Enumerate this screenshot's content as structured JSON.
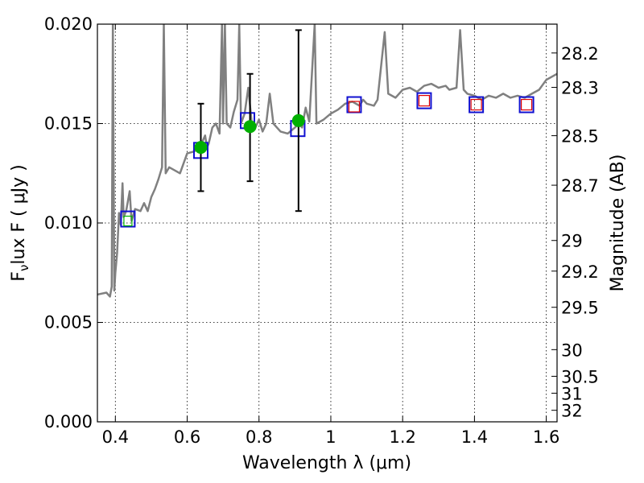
{
  "chart_data": {
    "type": "scatter",
    "xlabel": "Wavelength  λ (μm)",
    "ylabel": "Flux  F  ( μJy )",
    "ylabel_subscript": "ν",
    "y2label": "Magnitude (AB)",
    "xlim": [
      0.35,
      1.63
    ],
    "ylim": [
      0.0,
      0.02
    ],
    "grid": true,
    "x_ticks": [
      0.4,
      0.6,
      0.8,
      1.0,
      1.2,
      1.4,
      1.6
    ],
    "x_tick_labels": [
      "0.4",
      "0.6",
      "0.8",
      "1",
      "1.2",
      "1.4",
      "1.6"
    ],
    "y_ticks": [
      0.0,
      0.005,
      0.01,
      0.015,
      0.02
    ],
    "y_tick_labels": [
      "0.000",
      "0.005",
      "0.010",
      "0.015",
      "0.020"
    ],
    "y2_ticks": [
      {
        "flux": 0.01855,
        "label": "28.2"
      },
      {
        "flux": 0.01682,
        "label": "28.3"
      },
      {
        "flux": 0.01439,
        "label": "28.5"
      },
      {
        "flux": 0.0119,
        "label": "28.7"
      },
      {
        "flux": 0.00912,
        "label": "29"
      },
      {
        "flux": 0.00758,
        "label": "29.2"
      },
      {
        "flux": 0.00576,
        "label": "29.5"
      },
      {
        "flux": 0.00363,
        "label": "30"
      },
      {
        "flux": 0.00229,
        "label": "30.5"
      },
      {
        "flux": 0.00144,
        "label": "31"
      },
      {
        "flux": 0.00058,
        "label": "32"
      }
    ],
    "series": [
      {
        "kind": "line",
        "color": "#808080",
        "points": [
          [
            0.35,
            0.0064
          ],
          [
            0.375,
            0.0065
          ],
          [
            0.385,
            0.0063
          ],
          [
            0.39,
            0.0068
          ],
          [
            0.393,
            0.02
          ],
          [
            0.397,
            0.0066
          ],
          [
            0.4,
            0.0075
          ],
          [
            0.405,
            0.0085
          ],
          [
            0.41,
            0.0105
          ],
          [
            0.415,
            0.0099
          ],
          [
            0.42,
            0.012
          ],
          [
            0.423,
            0.0103
          ],
          [
            0.43,
            0.0106
          ],
          [
            0.44,
            0.0116
          ],
          [
            0.445,
            0.0101
          ],
          [
            0.455,
            0.0107
          ],
          [
            0.47,
            0.0106
          ],
          [
            0.48,
            0.011
          ],
          [
            0.49,
            0.0106
          ],
          [
            0.5,
            0.0113
          ],
          [
            0.51,
            0.0117
          ],
          [
            0.52,
            0.0122
          ],
          [
            0.53,
            0.0128
          ],
          [
            0.535,
            0.02
          ],
          [
            0.54,
            0.0125
          ],
          [
            0.55,
            0.0128
          ],
          [
            0.56,
            0.0127
          ],
          [
            0.58,
            0.0125
          ],
          [
            0.6,
            0.0135
          ],
          [
            0.62,
            0.0136
          ],
          [
            0.64,
            0.014
          ],
          [
            0.65,
            0.0144
          ],
          [
            0.655,
            0.0138
          ],
          [
            0.66,
            0.014
          ],
          [
            0.67,
            0.0148
          ],
          [
            0.68,
            0.015
          ],
          [
            0.69,
            0.0145
          ],
          [
            0.697,
            0.02
          ],
          [
            0.7,
            0.015
          ],
          [
            0.705,
            0.02
          ],
          [
            0.71,
            0.015
          ],
          [
            0.72,
            0.0148
          ],
          [
            0.73,
            0.0156
          ],
          [
            0.74,
            0.0162
          ],
          [
            0.745,
            0.02
          ],
          [
            0.75,
            0.015
          ],
          [
            0.76,
            0.0155
          ],
          [
            0.77,
            0.0168
          ],
          [
            0.78,
            0.015
          ],
          [
            0.79,
            0.0148
          ],
          [
            0.8,
            0.0152
          ],
          [
            0.81,
            0.0146
          ],
          [
            0.82,
            0.015
          ],
          [
            0.83,
            0.0165
          ],
          [
            0.84,
            0.015
          ],
          [
            0.86,
            0.0146
          ],
          [
            0.88,
            0.0145
          ],
          [
            0.9,
            0.0148
          ],
          [
            0.91,
            0.015
          ],
          [
            0.92,
            0.0148
          ],
          [
            0.93,
            0.0158
          ],
          [
            0.94,
            0.0151
          ],
          [
            0.955,
            0.02
          ],
          [
            0.96,
            0.015
          ],
          [
            0.98,
            0.0152
          ],
          [
            1.0,
            0.0155
          ],
          [
            1.02,
            0.0157
          ],
          [
            1.04,
            0.016
          ],
          [
            1.06,
            0.0161
          ],
          [
            1.08,
            0.0159
          ],
          [
            1.09,
            0.0162
          ],
          [
            1.1,
            0.016
          ],
          [
            1.12,
            0.0159
          ],
          [
            1.13,
            0.0162
          ],
          [
            1.15,
            0.0196
          ],
          [
            1.16,
            0.0165
          ],
          [
            1.18,
            0.0163
          ],
          [
            1.2,
            0.0167
          ],
          [
            1.22,
            0.0168
          ],
          [
            1.24,
            0.0166
          ],
          [
            1.26,
            0.0169
          ],
          [
            1.28,
            0.017
          ],
          [
            1.3,
            0.0168
          ],
          [
            1.32,
            0.0169
          ],
          [
            1.33,
            0.0167
          ],
          [
            1.35,
            0.0168
          ],
          [
            1.36,
            0.0197
          ],
          [
            1.37,
            0.0167
          ],
          [
            1.38,
            0.0165
          ],
          [
            1.4,
            0.0164
          ],
          [
            1.42,
            0.0162
          ],
          [
            1.44,
            0.0164
          ],
          [
            1.46,
            0.0163
          ],
          [
            1.48,
            0.0165
          ],
          [
            1.5,
            0.0163
          ],
          [
            1.52,
            0.0164
          ],
          [
            1.54,
            0.0163
          ],
          [
            1.56,
            0.0165
          ],
          [
            1.58,
            0.0167
          ],
          [
            1.6,
            0.0172
          ],
          [
            1.63,
            0.0175
          ]
        ]
      },
      {
        "kind": "model_squares",
        "edge_color": "#1010d0",
        "points": [
          [
            0.435,
            0.0102
          ],
          [
            0.638,
            0.01365
          ],
          [
            0.768,
            0.01515
          ],
          [
            0.908,
            0.01475
          ],
          [
            1.065,
            0.01595
          ],
          [
            1.26,
            0.01615
          ],
          [
            1.405,
            0.01595
          ],
          [
            1.545,
            0.01595
          ]
        ]
      },
      {
        "kind": "observed_squares",
        "edge_color": "#e00000",
        "points": [
          [
            1.065,
            0.01585
          ],
          [
            1.26,
            0.01615
          ],
          [
            1.405,
            0.01595
          ],
          [
            1.545,
            0.01595
          ]
        ]
      },
      {
        "kind": "detections",
        "color": "#00b000",
        "points": [
          {
            "x": 0.638,
            "y": 0.0138,
            "err_low": 0.0116,
            "err_high": 0.016
          },
          {
            "x": 0.775,
            "y": 0.01485,
            "err_low": 0.0121,
            "err_high": 0.0175
          },
          {
            "x": 0.91,
            "y": 0.01515,
            "err_low": 0.0106,
            "err_high": 0.0197
          }
        ]
      },
      {
        "kind": "small_marker",
        "color": "#00b000",
        "points": [
          [
            0.435,
            0.0101
          ]
        ]
      }
    ]
  }
}
